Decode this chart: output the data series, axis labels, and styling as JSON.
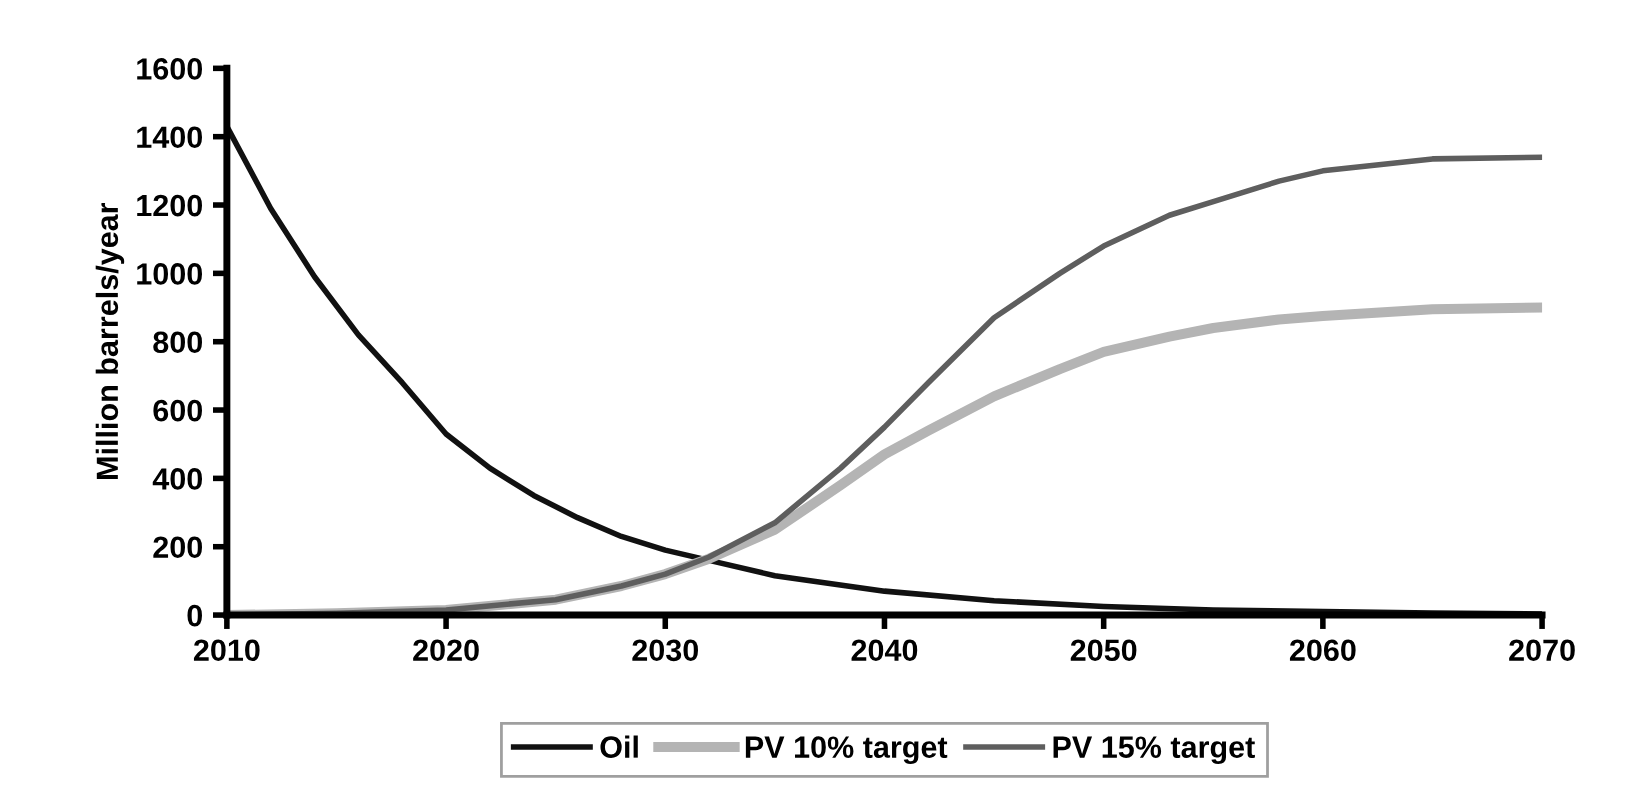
{
  "chart_data": {
    "type": "line",
    "ylabel": "Million barrels/year",
    "xlim": [
      2010,
      2070
    ],
    "xticks": [
      2010,
      2020,
      2030,
      2040,
      2050,
      2060,
      2070
    ],
    "ylim": [
      0,
      1600
    ],
    "yticks": [
      0,
      200,
      400,
      600,
      800,
      1000,
      1200,
      1400,
      1600
    ],
    "grid": false,
    "legend": "bottom",
    "marker": "none",
    "line_style": "solid",
    "series": [
      {
        "name": "Oil",
        "color": "#111111",
        "x": [
          2010,
          2012,
          2014,
          2016,
          2018,
          2020,
          2022,
          2024,
          2026,
          2028,
          2030,
          2032,
          2035,
          2040,
          2045,
          2050,
          2055,
          2060,
          2065,
          2070
        ],
        "values": [
          1430,
          1190,
          990,
          820,
          680,
          530,
          430,
          350,
          285,
          230,
          190,
          160,
          115,
          70,
          42,
          25,
          15,
          10,
          6,
          3
        ]
      },
      {
        "name": "PV 10% target",
        "color": "#b4b4b4",
        "x": [
          2010,
          2015,
          2020,
          2025,
          2028,
          2030,
          2032,
          2035,
          2038,
          2040,
          2042,
          2045,
          2048,
          2050,
          2053,
          2055,
          2058,
          2060,
          2065,
          2070
        ],
        "values": [
          0,
          5,
          15,
          45,
          85,
          120,
          165,
          250,
          380,
          470,
          540,
          640,
          720,
          770,
          815,
          840,
          865,
          875,
          895,
          900
        ]
      },
      {
        "name": "PV 15% target",
        "color": "#5e5e5e",
        "x": [
          2010,
          2015,
          2020,
          2025,
          2028,
          2030,
          2032,
          2035,
          2038,
          2040,
          2042,
          2045,
          2048,
          2050,
          2053,
          2055,
          2058,
          2060,
          2065,
          2070
        ],
        "values": [
          0,
          5,
          15,
          45,
          85,
          120,
          170,
          270,
          430,
          550,
          680,
          870,
          1000,
          1080,
          1170,
          1210,
          1270,
          1300,
          1335,
          1340
        ]
      }
    ]
  }
}
